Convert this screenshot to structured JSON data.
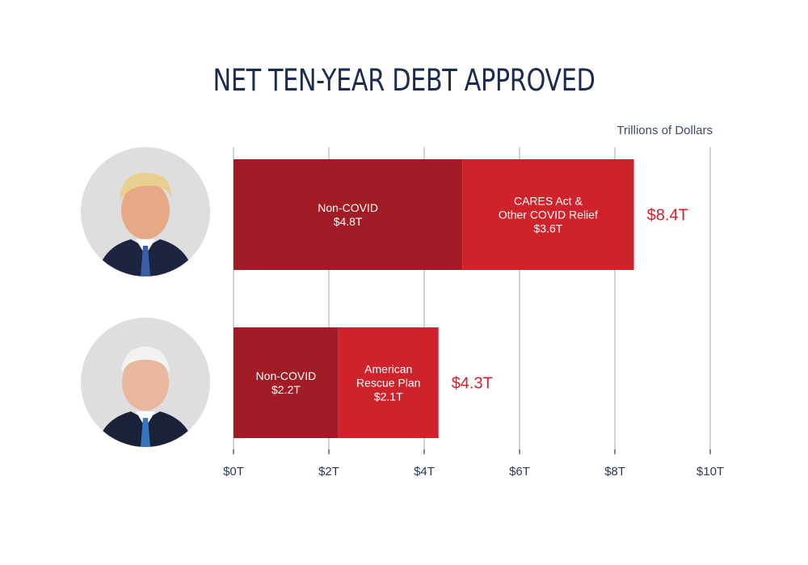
{
  "chart_data": {
    "type": "bar",
    "orientation": "horizontal",
    "stacked": true,
    "title": "NET TEN-YEAR DEBT APPROVED",
    "unit_label": "Trillions of Dollars",
    "xlim": [
      0,
      10
    ],
    "x_ticks": [
      0,
      2,
      4,
      6,
      8,
      10
    ],
    "x_tick_labels": [
      "$0T",
      "$2T",
      "$4T",
      "$6T",
      "$8T",
      "$10T"
    ],
    "grid": true,
    "colors": {
      "dark": "#a11c24",
      "light": "#d0222b",
      "total": "#d0222b",
      "axis": "#2a3a5c"
    },
    "rows": [
      {
        "total": 8.4,
        "total_label": "$8.4T",
        "segments": [
          {
            "label": [
              "Non-COVID",
              "$4.8T"
            ],
            "value": 4.8,
            "color": "dark"
          },
          {
            "label": [
              "CARES Act &",
              "Other COVID Relief",
              "$3.6T"
            ],
            "value": 3.6,
            "color": "light"
          }
        ]
      },
      {
        "total": 4.3,
        "total_label": "$4.3T",
        "segments": [
          {
            "label": [
              "Non-COVID",
              "$2.2T"
            ],
            "value": 2.2,
            "color": "dark"
          },
          {
            "label": [
              "American",
              "Rescue Plan",
              "$2.1T"
            ],
            "value": 2.1,
            "color": "light"
          }
        ]
      }
    ]
  }
}
